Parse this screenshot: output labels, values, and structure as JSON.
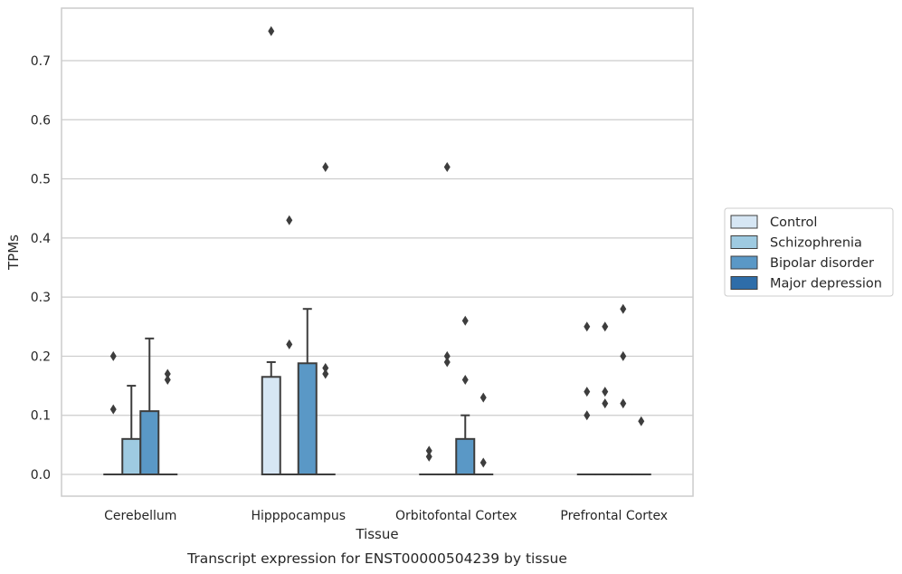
{
  "chart_data": {
    "type": "box",
    "title": "Transcript expression for ENST00000504239 by tissue",
    "xlabel": "Tissue",
    "ylabel": "TPMs",
    "ylim": [
      -0.035,
      0.79
    ],
    "yticks": [
      "0.0",
      "0.1",
      "0.2",
      "0.3",
      "0.4",
      "0.5",
      "0.6",
      "0.7"
    ],
    "grid": true,
    "legend_position": "right",
    "categories": [
      "Cerebellum",
      "Hipppocampus",
      "Orbitofontal Cortex",
      "Prefrontal Cortex"
    ],
    "series": [
      {
        "name": "Control",
        "color": "#d6e6f4",
        "boxes": [
          {
            "q1": 0,
            "median": 0,
            "q3": 0,
            "whisker_low": 0,
            "whisker_high": 0,
            "outliers": [
              0.11,
              0.2
            ]
          },
          {
            "q1": 0,
            "median": 0,
            "q3": 0.165,
            "whisker_low": 0,
            "whisker_high": 0.19,
            "outliers": [
              0.75
            ]
          },
          {
            "q1": 0,
            "median": 0,
            "q3": 0,
            "whisker_low": 0,
            "whisker_high": 0,
            "outliers": [
              0.03,
              0.04
            ]
          },
          {
            "q1": 0,
            "median": 0,
            "q3": 0,
            "whisker_low": 0,
            "whisker_high": 0,
            "outliers": [
              0.1,
              0.14,
              0.25
            ]
          }
        ]
      },
      {
        "name": "Schizophrenia",
        "color": "#9ecae1",
        "boxes": [
          {
            "q1": 0,
            "median": 0,
            "q3": 0.06,
            "whisker_low": 0,
            "whisker_high": 0.15,
            "outliers": []
          },
          {
            "q1": 0,
            "median": 0,
            "q3": 0,
            "whisker_low": 0,
            "whisker_high": 0,
            "outliers": [
              0.22,
              0.43
            ]
          },
          {
            "q1": 0,
            "median": 0,
            "q3": 0,
            "whisker_low": 0,
            "whisker_high": 0,
            "outliers": [
              0.19,
              0.2,
              0.52
            ]
          },
          {
            "q1": 0,
            "median": 0,
            "q3": 0,
            "whisker_low": 0,
            "whisker_high": 0,
            "outliers": [
              0.12,
              0.14,
              0.25
            ]
          }
        ]
      },
      {
        "name": "Bipolar disorder",
        "color": "#5a98c6",
        "boxes": [
          {
            "q1": 0,
            "median": 0,
            "q3": 0.107,
            "whisker_low": 0,
            "whisker_high": 0.23,
            "outliers": []
          },
          {
            "q1": 0,
            "median": 0,
            "q3": 0.188,
            "whisker_low": 0,
            "whisker_high": 0.28,
            "outliers": []
          },
          {
            "q1": 0,
            "median": 0,
            "q3": 0.06,
            "whisker_low": 0,
            "whisker_high": 0.1,
            "outliers": [
              0.16,
              0.26
            ]
          },
          {
            "q1": 0,
            "median": 0,
            "q3": 0,
            "whisker_low": 0,
            "whisker_high": 0,
            "outliers": [
              0.12,
              0.2,
              0.28
            ]
          }
        ]
      },
      {
        "name": "Major depression",
        "color": "#2e6da9",
        "boxes": [
          {
            "q1": 0,
            "median": 0,
            "q3": 0,
            "whisker_low": 0,
            "whisker_high": 0,
            "outliers": [
              0.16,
              0.17
            ]
          },
          {
            "q1": 0,
            "median": 0,
            "q3": 0,
            "whisker_low": 0,
            "whisker_high": 0,
            "outliers": [
              0.17,
              0.18,
              0.52
            ]
          },
          {
            "q1": 0,
            "median": 0,
            "q3": 0,
            "whisker_low": 0,
            "whisker_high": 0,
            "outliers": [
              0.02,
              0.13
            ]
          },
          {
            "q1": 0,
            "median": 0,
            "q3": 0,
            "whisker_low": 0,
            "whisker_high": 0,
            "outliers": [
              0.09
            ]
          }
        ]
      }
    ]
  }
}
